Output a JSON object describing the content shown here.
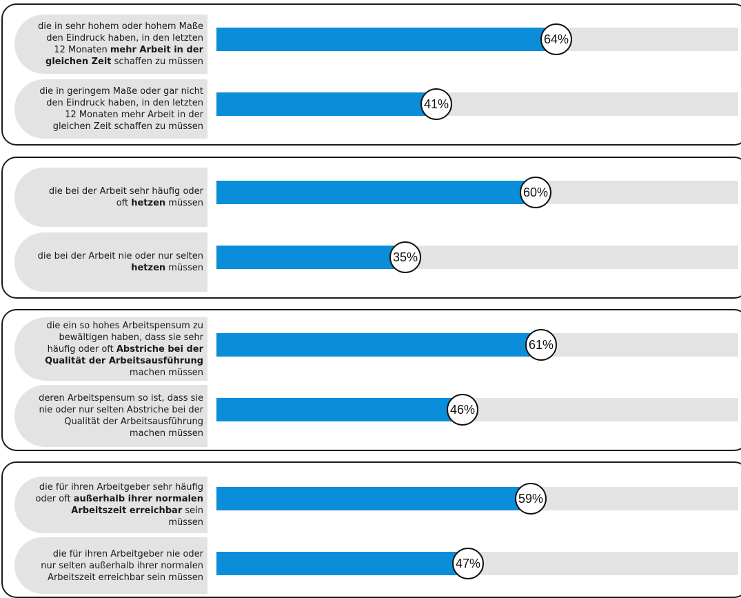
{
  "chart_data": {
    "type": "bar",
    "orientation": "horizontal",
    "ylim": [
      0,
      100
    ],
    "colors": {
      "bar": "#0a8ed9",
      "track": "#e3e3e3",
      "label_bg": "#e3e3e3"
    },
    "groups": [
      {
        "rows": [
          {
            "segments": [
              {
                "text": "die in sehr hohem oder hohem Maße den Eindruck haben, in den letzten 12 Monaten ",
                "bold": false
              },
              {
                "text": "mehr Arbeit in der gleichen Zeit",
                "bold": true
              },
              {
                "text": " schaffen zu müssen",
                "bold": false
              }
            ],
            "value": 64,
            "value_label": "64%"
          },
          {
            "segments": [
              {
                "text": "die in geringem Maße oder gar nicht den Eindruck haben, in den letzten 12 Monaten mehr Arbeit in der gleichen Zeit schaffen zu müssen",
                "bold": false
              }
            ],
            "value": 41,
            "value_label": "41%"
          }
        ]
      },
      {
        "rows": [
          {
            "segments": [
              {
                "text": "die bei der Arbeit sehr häufig oder oft ",
                "bold": false
              },
              {
                "text": "hetzen",
                "bold": true
              },
              {
                "text": " müssen",
                "bold": false
              }
            ],
            "value": 60,
            "value_label": "60%"
          },
          {
            "segments": [
              {
                "text": "die bei der Arbeit nie oder nur selten ",
                "bold": false
              },
              {
                "text": "hetzen",
                "bold": true
              },
              {
                "text": " müssen",
                "bold": false
              }
            ],
            "value": 35,
            "value_label": "35%"
          }
        ]
      },
      {
        "rows": [
          {
            "segments": [
              {
                "text": "die ein so hohes Arbeitspensum zu bewältigen haben, dass sie sehr häufig oder oft ",
                "bold": false
              },
              {
                "text": "Abstriche bei der Qualität der Arbeitsausführung",
                "bold": true
              },
              {
                "text": " machen müssen",
                "bold": false
              }
            ],
            "value": 61,
            "value_label": "61%"
          },
          {
            "segments": [
              {
                "text": "deren Arbeitspensum so ist, dass sie nie oder nur selten Abstriche bei der Qualität der Arbeitsausführung machen müssen",
                "bold": false
              }
            ],
            "value": 46,
            "value_label": "46%"
          }
        ]
      },
      {
        "rows": [
          {
            "segments": [
              {
                "text": "die für ihren Arbeitgeber sehr häufig oder oft ",
                "bold": false
              },
              {
                "text": "außerhalb ihrer normalen Arbeitszeit erreichbar",
                "bold": true
              },
              {
                "text": " sein müssen",
                "bold": false
              }
            ],
            "value": 59,
            "value_label": "59%"
          },
          {
            "segments": [
              {
                "text": "die für ihren Arbeitgeber nie oder nur selten außerhalb ihrer normalen Arbeitszeit erreichbar sein müssen",
                "bold": false
              }
            ],
            "value": 47,
            "value_label": "47%"
          }
        ]
      }
    ]
  }
}
